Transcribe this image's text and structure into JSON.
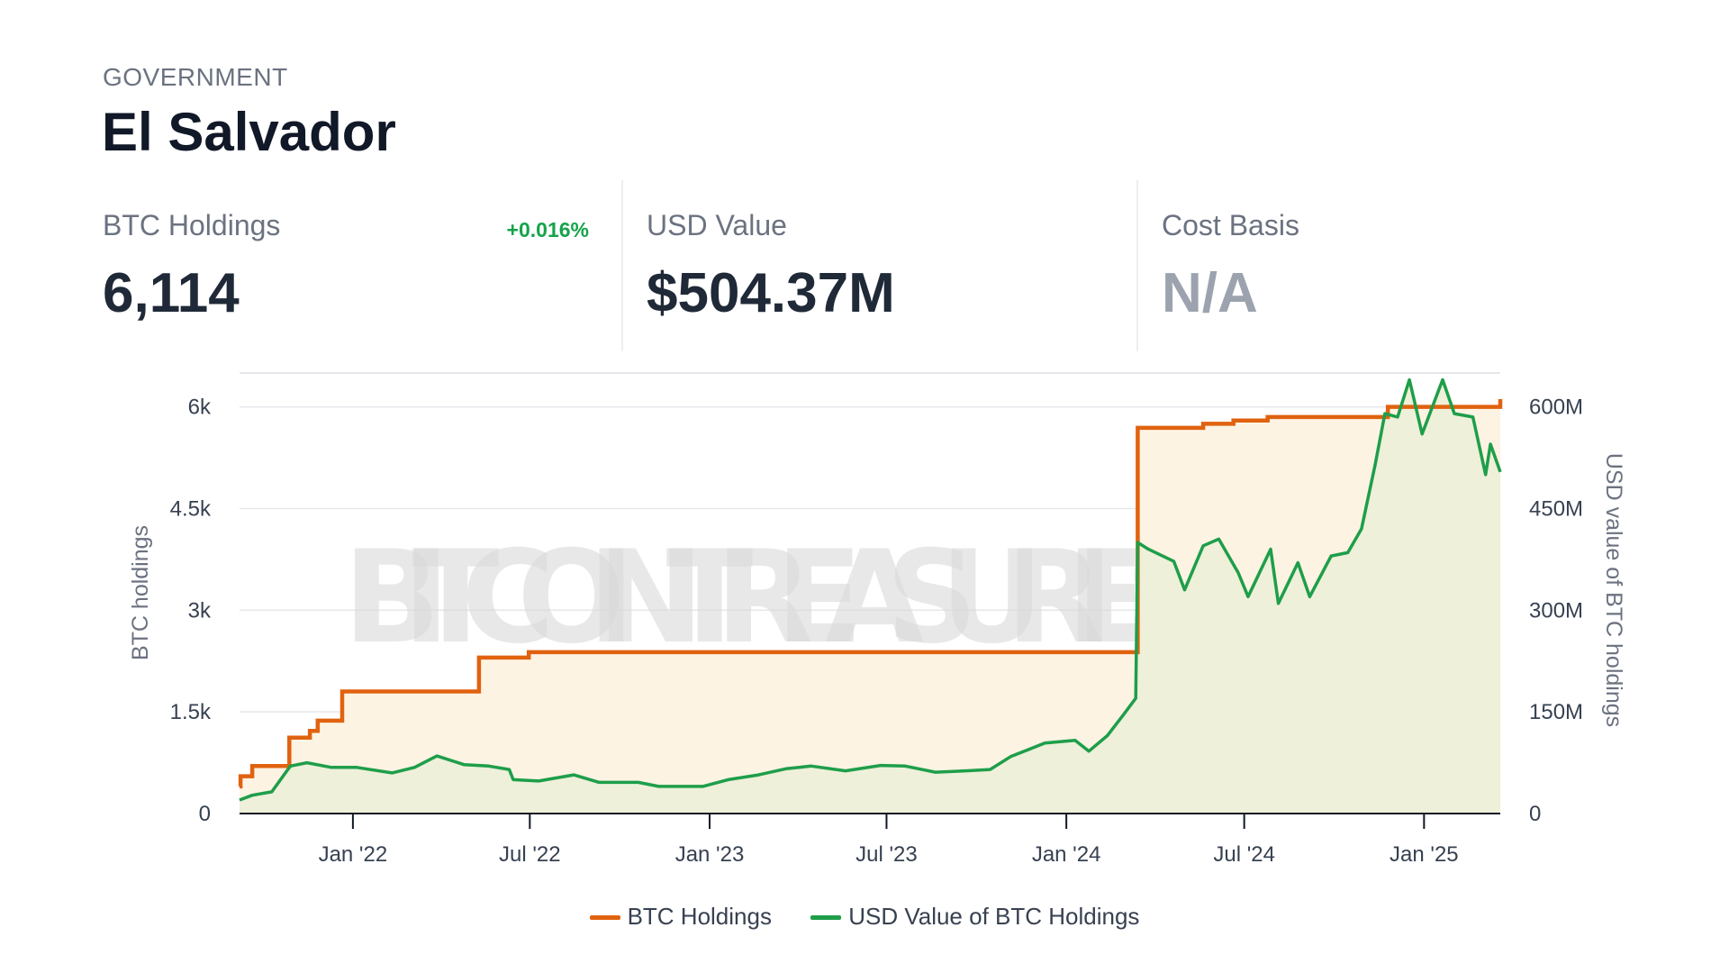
{
  "header": {
    "category": "GOVERNMENT",
    "title": "El Salvador"
  },
  "stats": {
    "btc": {
      "label": "BTC Holdings",
      "value": "6,114",
      "change": "+0.016%"
    },
    "usd": {
      "label": "USD Value",
      "value": "$504.37M"
    },
    "cost": {
      "label": "Cost Basis",
      "value": "N/A"
    }
  },
  "watermark": "BITCOINTREASURIES.NET",
  "colors": {
    "btc_line": "#e0620f",
    "usd_line": "#1e9e4a",
    "btc_fill": "#fdf3e3",
    "usd_fill": "#eef0d9",
    "positive": "#16a34a"
  },
  "chart_data": {
    "type": "line",
    "title": "",
    "x_ticks": [
      "Jan '22",
      "Jul '22",
      "Jan '23",
      "Jul '23",
      "Jan '24",
      "Jul '24",
      "Jan '25"
    ],
    "x_range": [
      "2021-09-07",
      "2025-03-20"
    ],
    "ylabel_left": "BTC holdings",
    "ylabel_right": "USD value of BTC holdings",
    "y_left_ticks": [
      "0",
      "1.5k",
      "3k",
      "4.5k",
      "6k"
    ],
    "y_right_ticks": [
      "0",
      "150M",
      "300M",
      "450M",
      "600M"
    ],
    "ylim_left": [
      0,
      6500
    ],
    "ylim_right": [
      0,
      650000000
    ],
    "grid": true,
    "legend_position": "bottom-center",
    "series": [
      {
        "name": "BTC Holdings",
        "axis": "left",
        "step": true,
        "points": [
          [
            "2021-09-07",
            400
          ],
          [
            "2021-09-08",
            550
          ],
          [
            "2021-09-20",
            700
          ],
          [
            "2021-10-28",
            1120
          ],
          [
            "2021-11-18",
            1220
          ],
          [
            "2021-11-26",
            1370
          ],
          [
            "2021-12-21",
            1801
          ],
          [
            "2022-05-10",
            2301
          ],
          [
            "2022-06-30",
            2381
          ],
          [
            "2024-03-14",
            5690
          ],
          [
            "2024-05-20",
            5750
          ],
          [
            "2024-06-20",
            5800
          ],
          [
            "2024-07-25",
            5850
          ],
          [
            "2024-11-25",
            6000
          ],
          [
            "2025-03-20",
            6114
          ]
        ]
      },
      {
        "name": "USD Value of BTC Holdings",
        "axis": "right",
        "points": [
          [
            "2021-09-07",
            20000000
          ],
          [
            "2021-09-20",
            27000000
          ],
          [
            "2021-10-10",
            32000000
          ],
          [
            "2021-10-29",
            70000000
          ],
          [
            "2021-11-15",
            75000000
          ],
          [
            "2021-12-10",
            68000000
          ],
          [
            "2022-01-05",
            68000000
          ],
          [
            "2022-02-10",
            60000000
          ],
          [
            "2022-03-05",
            68000000
          ],
          [
            "2022-03-28",
            85000000
          ],
          [
            "2022-04-25",
            72000000
          ],
          [
            "2022-05-20",
            70000000
          ],
          [
            "2022-06-10",
            65000000
          ],
          [
            "2022-06-14",
            50000000
          ],
          [
            "2022-07-10",
            48000000
          ],
          [
            "2022-08-15",
            57000000
          ],
          [
            "2022-09-10",
            46000000
          ],
          [
            "2022-10-20",
            46000000
          ],
          [
            "2022-11-10",
            40000000
          ],
          [
            "2022-12-25",
            40000000
          ],
          [
            "2023-01-20",
            50000000
          ],
          [
            "2023-02-20",
            57000000
          ],
          [
            "2023-03-20",
            66000000
          ],
          [
            "2023-04-15",
            70000000
          ],
          [
            "2023-05-20",
            63000000
          ],
          [
            "2023-06-25",
            71000000
          ],
          [
            "2023-07-20",
            70000000
          ],
          [
            "2023-08-20",
            61000000
          ],
          [
            "2023-09-20",
            63000000
          ],
          [
            "2023-10-15",
            65000000
          ],
          [
            "2023-11-05",
            84000000
          ],
          [
            "2023-12-10",
            104000000
          ],
          [
            "2024-01-10",
            108000000
          ],
          [
            "2024-01-24",
            92000000
          ],
          [
            "2024-02-12",
            115000000
          ],
          [
            "2024-02-28",
            145000000
          ],
          [
            "2024-03-12",
            170000000
          ],
          [
            "2024-03-14",
            400000000
          ],
          [
            "2024-03-25",
            390000000
          ],
          [
            "2024-04-20",
            372000000
          ],
          [
            "2024-05-01",
            330000000
          ],
          [
            "2024-05-20",
            395000000
          ],
          [
            "2024-06-05",
            405000000
          ],
          [
            "2024-06-25",
            355000000
          ],
          [
            "2024-07-05",
            320000000
          ],
          [
            "2024-07-28",
            390000000
          ],
          [
            "2024-08-05",
            310000000
          ],
          [
            "2024-08-25",
            370000000
          ],
          [
            "2024-09-06",
            320000000
          ],
          [
            "2024-09-28",
            380000000
          ],
          [
            "2024-10-15",
            385000000
          ],
          [
            "2024-10-29",
            420000000
          ],
          [
            "2024-11-12",
            515000000
          ],
          [
            "2024-11-22",
            590000000
          ],
          [
            "2024-12-05",
            585000000
          ],
          [
            "2024-12-17",
            640000000
          ],
          [
            "2024-12-30",
            560000000
          ],
          [
            "2025-01-20",
            640000000
          ],
          [
            "2025-02-01",
            590000000
          ],
          [
            "2025-02-20",
            585000000
          ],
          [
            "2025-03-05",
            500000000
          ],
          [
            "2025-03-10",
            545000000
          ],
          [
            "2025-03-20",
            504000000
          ]
        ]
      }
    ]
  }
}
